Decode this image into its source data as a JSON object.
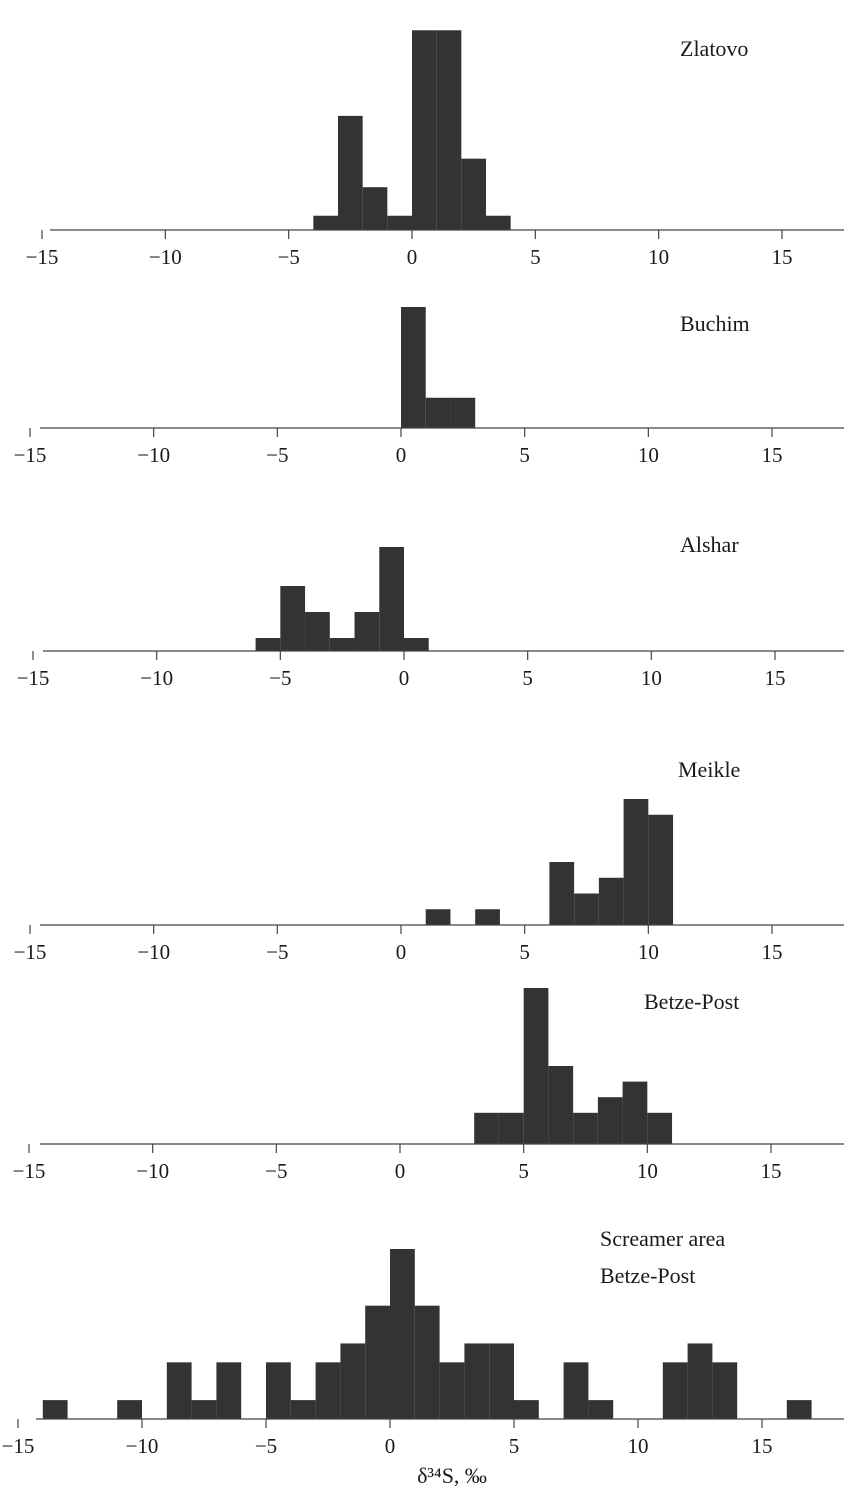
{
  "chart_data": [
    {
      "type": "bar",
      "label": "Zlatovo",
      "bin_width": 1,
      "bins": [
        {
          "x0": -4,
          "count": 1
        },
        {
          "x0": -3,
          "count": 8
        },
        {
          "x0": -2,
          "count": 3
        },
        {
          "x0": -1,
          "count": 1
        },
        {
          "x0": 0,
          "count": 14
        },
        {
          "x0": 1,
          "count": 14
        },
        {
          "x0": 2,
          "count": 5
        },
        {
          "x0": 3,
          "count": 1
        }
      ],
      "xlim": [
        -15,
        17.5
      ],
      "ylim": [
        0,
        15
      ],
      "xticks": [
        -15,
        -10,
        -5,
        0,
        5,
        10,
        15
      ],
      "xticklabels": [
        "−15",
        "−10",
        "−5",
        "0",
        "5",
        "10",
        "15"
      ],
      "xlabel": ""
    },
    {
      "type": "bar",
      "label": "Buchim",
      "bin_width": 1,
      "bins": [
        {
          "x0": 0,
          "count": 4
        },
        {
          "x0": 1,
          "count": 1
        },
        {
          "x0": 2,
          "count": 1
        }
      ],
      "xlim": [
        -15,
        17.5
      ],
      "ylim": [
        0,
        4
      ],
      "xticks": [
        -15,
        -10,
        -5,
        0,
        5,
        10,
        15
      ],
      "xticklabels": [
        "−15",
        "−10",
        "−5",
        "0",
        "5",
        "10",
        "15"
      ],
      "xlabel": ""
    },
    {
      "type": "bar",
      "label": "Alshar",
      "bin_width": 1,
      "bins": [
        {
          "x0": -6,
          "count": 1
        },
        {
          "x0": -5,
          "count": 5
        },
        {
          "x0": -4,
          "count": 3
        },
        {
          "x0": -3,
          "count": 1
        },
        {
          "x0": -2,
          "count": 3
        },
        {
          "x0": -1,
          "count": 8
        },
        {
          "x0": 0,
          "count": 1
        }
      ],
      "xlim": [
        -15,
        17.5
      ],
      "ylim": [
        0,
        8
      ],
      "xticks": [
        -15,
        -10,
        -5,
        0,
        5,
        10,
        15
      ],
      "xticklabels": [
        "−15",
        "−10",
        "−5",
        "0",
        "5",
        "10",
        "15"
      ],
      "xlabel": ""
    },
    {
      "type": "bar",
      "label": "Meikle",
      "bin_width": 1,
      "bins": [
        {
          "x0": 1,
          "count": 1
        },
        {
          "x0": 3,
          "count": 1
        },
        {
          "x0": 6,
          "count": 4
        },
        {
          "x0": 7,
          "count": 2
        },
        {
          "x0": 8,
          "count": 3
        },
        {
          "x0": 9,
          "count": 8
        },
        {
          "x0": 10,
          "count": 7
        }
      ],
      "xlim": [
        -15,
        17.5
      ],
      "ylim": [
        0,
        8
      ],
      "xticks": [
        -15,
        -10,
        -5,
        0,
        5,
        10,
        15
      ],
      "xticklabels": [
        "−15",
        "−10",
        "−5",
        "0",
        "5",
        "10",
        "15"
      ],
      "xlabel": ""
    },
    {
      "type": "bar",
      "label": "Betze-Post",
      "bin_width": 1,
      "bins": [
        {
          "x0": 3,
          "count": 2
        },
        {
          "x0": 4,
          "count": 2
        },
        {
          "x0": 5,
          "count": 10
        },
        {
          "x0": 6,
          "count": 5
        },
        {
          "x0": 7,
          "count": 2
        },
        {
          "x0": 8,
          "count": 3
        },
        {
          "x0": 9,
          "count": 4
        },
        {
          "x0": 10,
          "count": 2
        }
      ],
      "xlim": [
        -15,
        17.5
      ],
      "ylim": [
        0,
        10
      ],
      "xticks": [
        -15,
        -10,
        -5,
        0,
        5,
        10,
        15
      ],
      "xticklabels": [
        "−15",
        "−10",
        "−5",
        "0",
        "5",
        "10",
        "15"
      ],
      "xlabel": ""
    },
    {
      "type": "bar",
      "label": "Screamer area\nBetze-Post",
      "label_lines": [
        "Screamer area",
        "Betze-Post"
      ],
      "bin_width": 1,
      "bins": [
        {
          "x0": -14,
          "count": 1
        },
        {
          "x0": -11,
          "count": 1
        },
        {
          "x0": -9,
          "count": 3
        },
        {
          "x0": -8,
          "count": 1
        },
        {
          "x0": -7,
          "count": 3
        },
        {
          "x0": -5,
          "count": 3
        },
        {
          "x0": -4,
          "count": 1
        },
        {
          "x0": -3,
          "count": 3
        },
        {
          "x0": -2,
          "count": 4
        },
        {
          "x0": -1,
          "count": 6
        },
        {
          "x0": 0,
          "count": 9
        },
        {
          "x0": 1,
          "count": 6
        },
        {
          "x0": 2,
          "count": 3
        },
        {
          "x0": 3,
          "count": 4
        },
        {
          "x0": 4,
          "count": 4
        },
        {
          "x0": 5,
          "count": 1
        },
        {
          "x0": 7,
          "count": 3
        },
        {
          "x0": 8,
          "count": 1
        },
        {
          "x0": 11,
          "count": 3
        },
        {
          "x0": 12,
          "count": 4
        },
        {
          "x0": 13,
          "count": 3
        },
        {
          "x0": 16,
          "count": 1
        }
      ],
      "xlim": [
        -15,
        17.5
      ],
      "ylim": [
        0,
        9
      ],
      "xticks": [
        -15,
        -10,
        -5,
        0,
        5,
        10,
        15
      ],
      "xticklabels": [
        "−15",
        "−10",
        "−5",
        "0",
        "5",
        "10",
        "15"
      ],
      "xlabel": "δ³⁴S, ‰"
    }
  ],
  "colors": {
    "bar": "#333333",
    "axis": "#444444",
    "text": "#1a1a1a"
  }
}
